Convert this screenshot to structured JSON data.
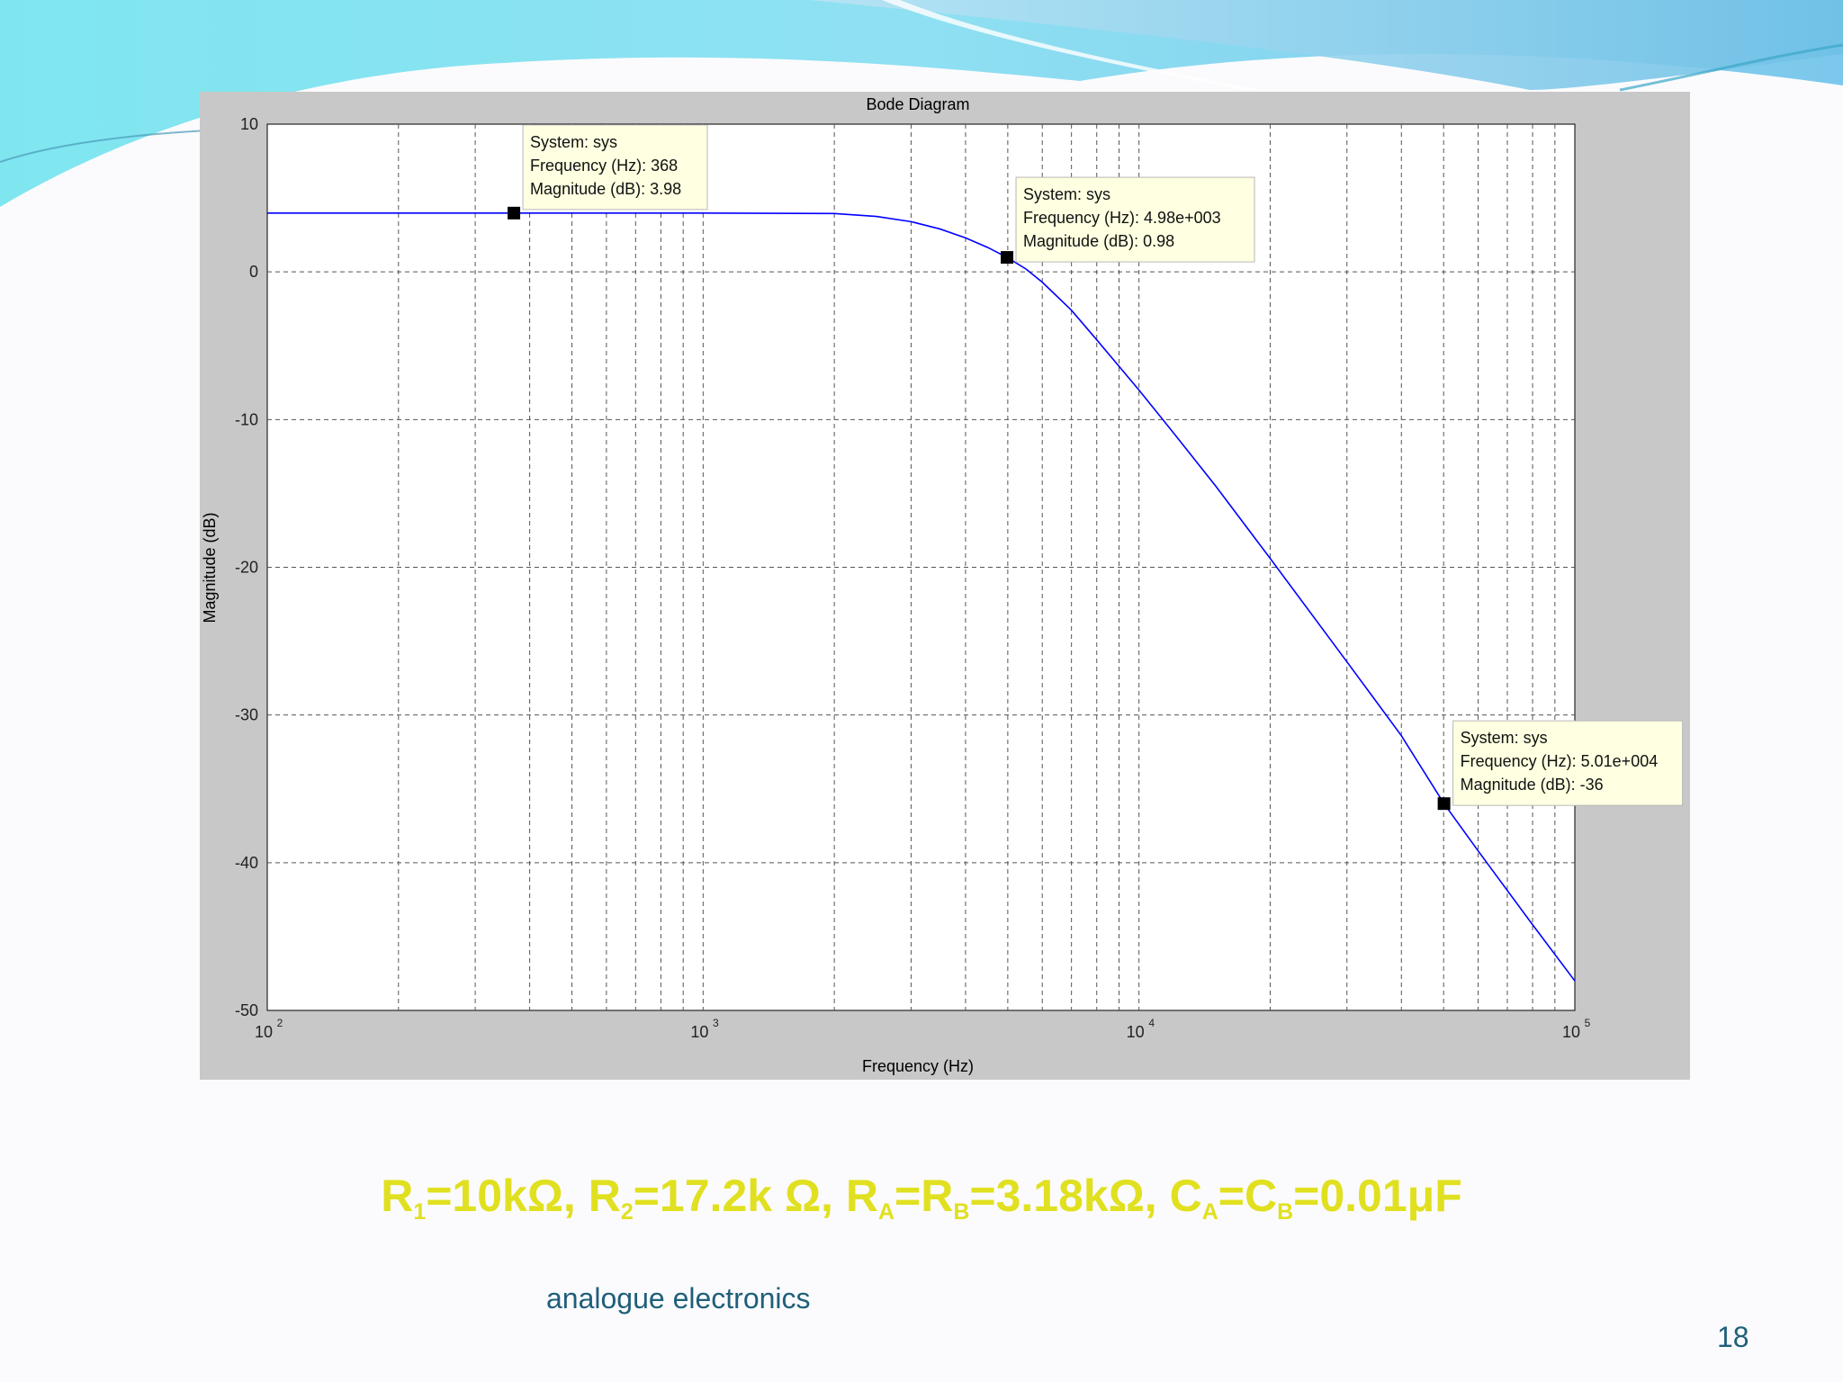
{
  "chart_data": {
    "type": "line",
    "title": "Bode Diagram",
    "xlabel": "Frequency  (Hz)",
    "ylabel": "Magnitude (dB)",
    "xscale": "log",
    "xlim": [
      100,
      100000
    ],
    "ylim": [
      -50,
      10
    ],
    "grid": true,
    "x_ticks": [
      {
        "base": "10",
        "exp": "2"
      },
      {
        "base": "10",
        "exp": "3"
      },
      {
        "base": "10",
        "exp": "4"
      },
      {
        "base": "10",
        "exp": "5"
      }
    ],
    "y_ticks": [
      "10",
      "0",
      "-10",
      "-20",
      "-30",
      "-40",
      "-50"
    ],
    "series": [
      {
        "color": "#0000ff",
        "x": [
          100,
          200,
          368,
          500,
          1000,
          2000,
          2500,
          3000,
          3500,
          4000,
          4500,
          4980,
          5500,
          6000,
          7000,
          8000,
          10000,
          12000,
          15000,
          20000,
          30000,
          40000,
          50100,
          60000,
          80000,
          100000
        ],
        "y": [
          3.98,
          3.98,
          3.98,
          3.98,
          3.98,
          3.95,
          3.75,
          3.4,
          2.9,
          2.3,
          1.65,
          0.98,
          0.2,
          -0.7,
          -2.6,
          -4.6,
          -8.0,
          -10.9,
          -14.5,
          -19.4,
          -26.4,
          -31.4,
          -36.0,
          -39.2,
          -44.2,
          -48.0
        ]
      }
    ],
    "datatips": [
      {
        "x": 368,
        "y": 3.98,
        "lines": [
          "System: sys",
          "Frequency (Hz): 368",
          "Magnitude (dB): 3.98"
        ]
      },
      {
        "x": 4980,
        "y": 0.98,
        "lines": [
          "System: sys",
          "Frequency (Hz): 4.98e+003",
          "Magnitude (dB): 0.98"
        ]
      },
      {
        "x": 50100,
        "y": -36,
        "lines": [
          "System: sys",
          "Frequency (Hz): 5.01e+004",
          "Magnitude (dB): -36"
        ]
      }
    ]
  },
  "formula": {
    "r1": "R",
    "r1_sub": "1",
    "r1_val": "=10kΩ, ",
    "r2": "R",
    "r2_sub": "2",
    "r2_val": "=17.2k Ω, ",
    "ra": "R",
    "ra_sub": "A",
    "ra_eq": "=",
    "rb": "R",
    "rb_sub": "B",
    "rb_val": "=3.18kΩ, ",
    "ca": "C",
    "ca_sub": "A",
    "ca_eq": "=",
    "cb": "C",
    "cb_sub": "B",
    "cb_val": "=0.01μF"
  },
  "footer": {
    "text": "analogue electronics",
    "page": "18"
  }
}
